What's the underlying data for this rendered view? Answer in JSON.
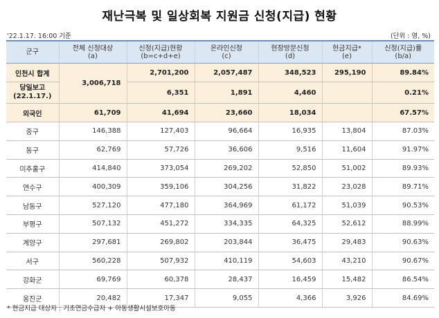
{
  "title": "재난극복 및 일상회복 지원금 신청(지급) 현황",
  "date_note": "'22.1.17. 16:00 기준",
  "unit_note": "(단위 : 명, %)",
  "headers": [
    {
      "line1": "군구",
      "line2": ""
    },
    {
      "line1": "전체 신청대상",
      "line2": "(a)"
    },
    {
      "line1": "신청(지급)현황",
      "line2": "(b=c+d+e)"
    },
    {
      "line1": "온라인신청",
      "line2": "(c)"
    },
    {
      "line1": "현장방문신청",
      "line2": "(d)"
    },
    {
      "line1": "현금지급*",
      "line2": "(e)"
    },
    {
      "line1": "신청(지급)률",
      "line2": "(b/a)"
    }
  ],
  "summary": {
    "total_label": "인천시 합계",
    "total_target": "3,006,718",
    "total_values": [
      "2,701,200",
      "2,057,487",
      "348,523",
      "295,190",
      "89.84%"
    ],
    "daily_label_1": "당일보고",
    "daily_label_2": "(22.1.17.)",
    "daily_values": [
      "6,351",
      "1,891",
      "4,460",
      "0.21%"
    ],
    "foreign_label": "외국인",
    "foreign_values": [
      "61,709",
      "41,694",
      "23,660",
      "18,034",
      "67.57%"
    ]
  },
  "districts": [
    {
      "name": "중구",
      "values": [
        "146,388",
        "127,403",
        "96,664",
        "16,935",
        "13,804",
        "87.03%"
      ]
    },
    {
      "name": "동구",
      "values": [
        "62,769",
        "57,726",
        "36,606",
        "9,516",
        "11,604",
        "91.97%"
      ]
    },
    {
      "name": "미추홀구",
      "values": [
        "414,840",
        "373,054",
        "269,202",
        "52,850",
        "51,002",
        "89.93%"
      ]
    },
    {
      "name": "연수구",
      "values": [
        "400,309",
        "359,106",
        "304,256",
        "31,822",
        "23,028",
        "89.71%"
      ]
    },
    {
      "name": "남동구",
      "values": [
        "527,120",
        "477,180",
        "364,969",
        "61,172",
        "51,039",
        "90.53%"
      ]
    },
    {
      "name": "부평구",
      "values": [
        "507,132",
        "451,272",
        "334,335",
        "64,325",
        "52,612",
        "88.99%"
      ]
    },
    {
      "name": "계양구",
      "values": [
        "297,681",
        "269,802",
        "203,844",
        "36,475",
        "29,483",
        "90.63%"
      ]
    },
    {
      "name": "서구",
      "values": [
        "560,228",
        "507,932",
        "410,119",
        "54,603",
        "43,210",
        "90.67%"
      ]
    },
    {
      "name": "강화군",
      "values": [
        "69,769",
        "60,378",
        "28,437",
        "16,459",
        "15,482",
        "86.54%"
      ]
    },
    {
      "name": "옹진군",
      "values": [
        "20,482",
        "17,347",
        "9,055",
        "4,366",
        "3,926",
        "84.69%"
      ]
    }
  ],
  "footnote": "* 현금지급 대상자 : 기초연금수급자 + 아동생활시설보호아동"
}
